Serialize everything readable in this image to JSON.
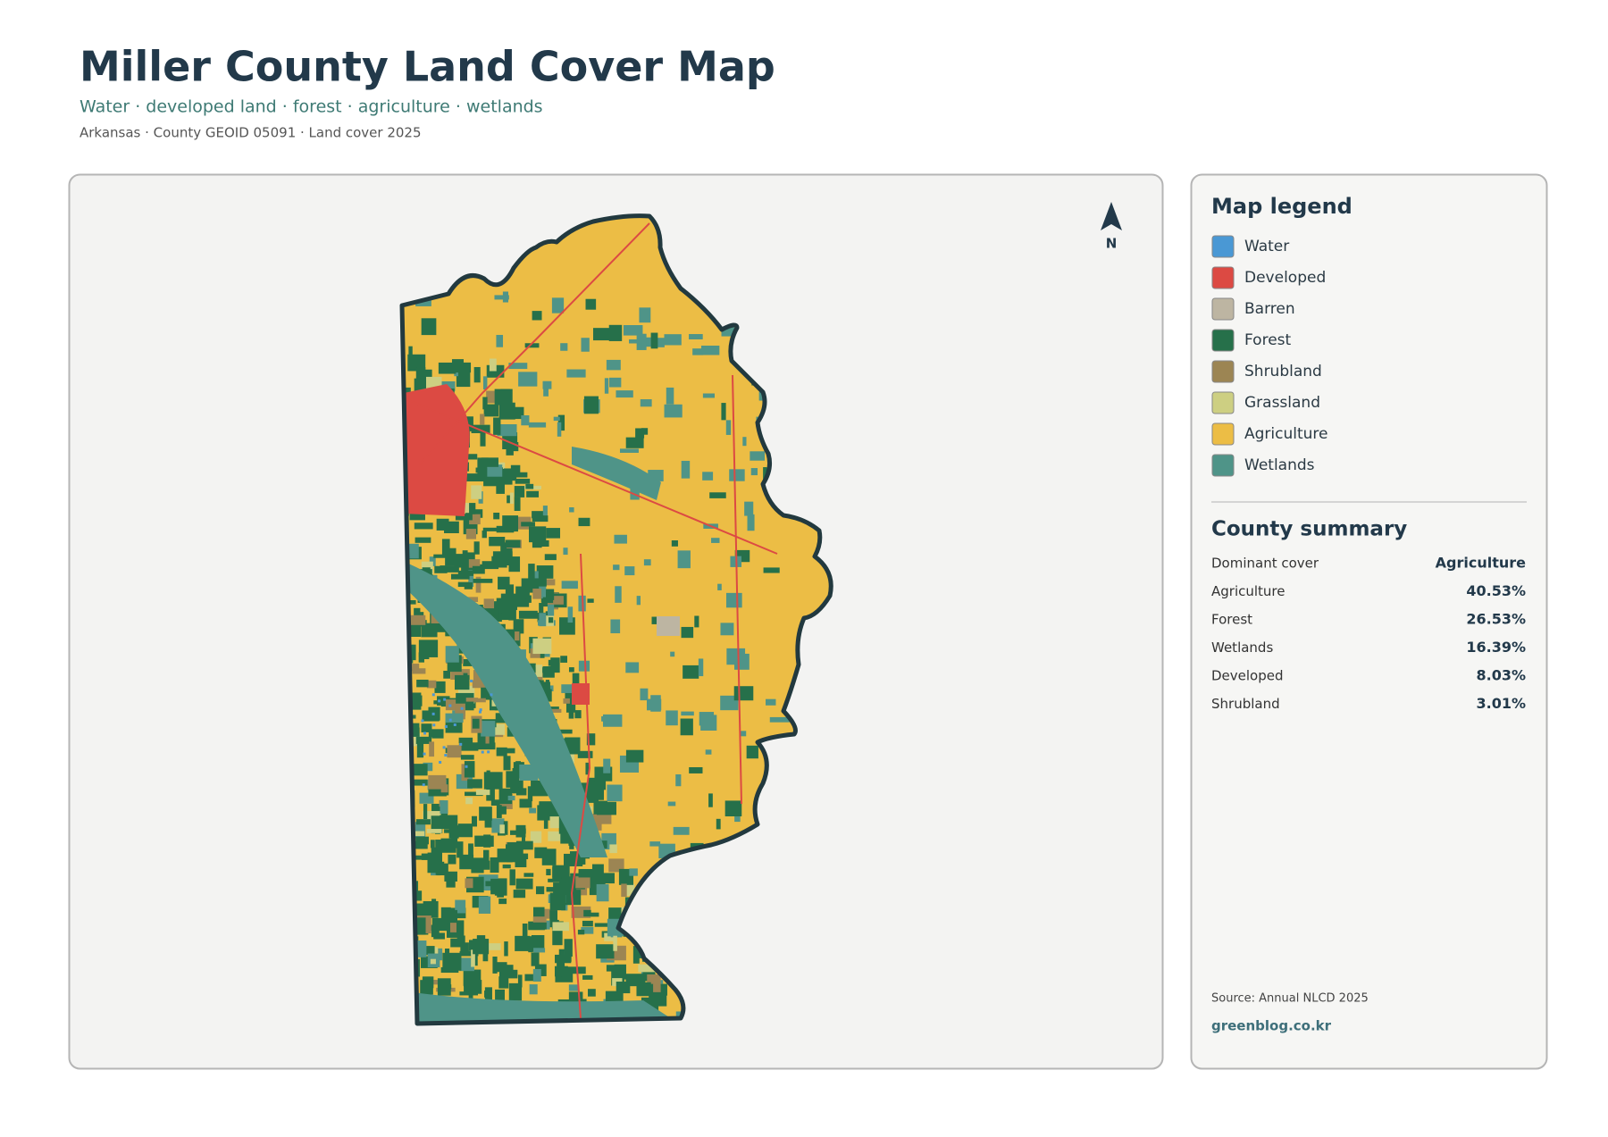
{
  "header": {
    "title": "Miller County Land Cover Map",
    "subtitle": "Water · developed land · forest · agriculture · wetlands",
    "meta": "Arkansas · County GEOID 05091 · Land cover 2025"
  },
  "map": {
    "north_label": "N"
  },
  "legend": {
    "title": "Map legend",
    "items": [
      {
        "name": "Water",
        "color": "#4a98d4"
      },
      {
        "name": "Developed",
        "color": "#dc4a43"
      },
      {
        "name": "Barren",
        "color": "#bdb5a2"
      },
      {
        "name": "Forest",
        "color": "#26704a"
      },
      {
        "name": "Shrubland",
        "color": "#9c8553"
      },
      {
        "name": "Grassland",
        "color": "#cdcf82"
      },
      {
        "name": "Agriculture",
        "color": "#ecbd45"
      },
      {
        "name": "Wetlands",
        "color": "#4f9488"
      }
    ]
  },
  "summary": {
    "title": "County summary",
    "rows": [
      {
        "label": "Dominant cover",
        "value": "Agriculture"
      },
      {
        "label": "Agriculture",
        "value": "40.53%"
      },
      {
        "label": "Forest",
        "value": "26.53%"
      },
      {
        "label": "Wetlands",
        "value": "16.39%"
      },
      {
        "label": "Developed",
        "value": "8.03%"
      },
      {
        "label": "Shrubland",
        "value": "3.01%"
      }
    ]
  },
  "footer": {
    "source": "Source: Annual NLCD 2025",
    "site": "greenblog.co.kr"
  }
}
